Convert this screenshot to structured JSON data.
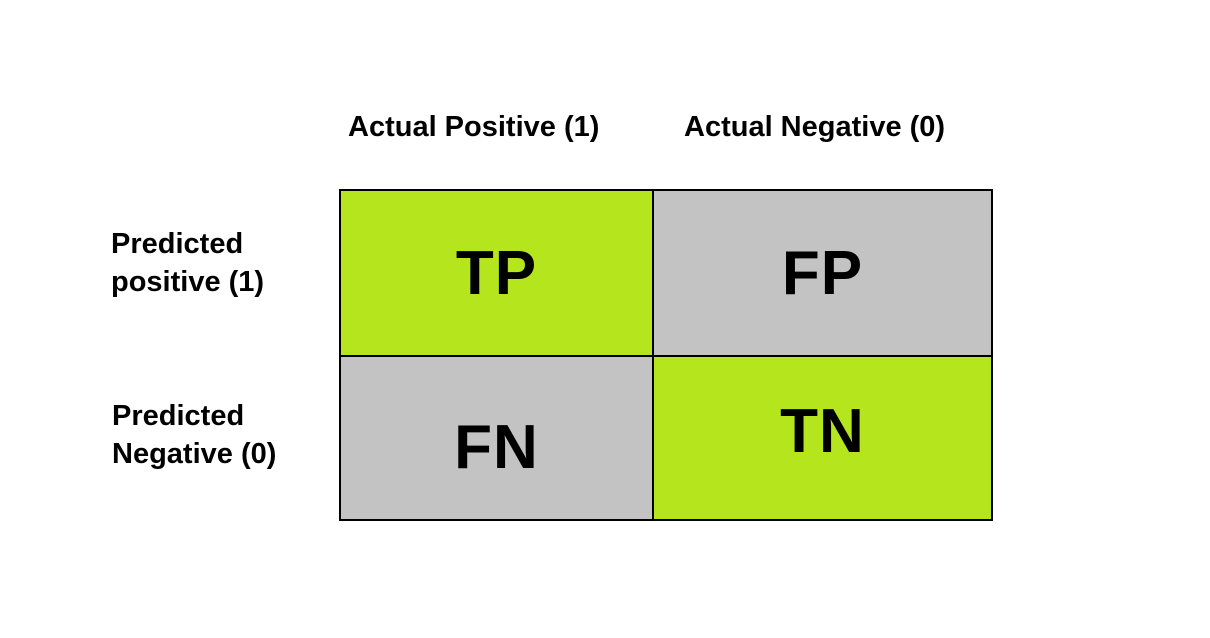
{
  "columns": {
    "actual_positive": "Actual Positive (1)",
    "actual_negative": "Actual Negative (0)"
  },
  "rows": {
    "predicted_positive": [
      "Predicted",
      "positive (1)"
    ],
    "predicted_negative": [
      "Predicted",
      "Negative (0)"
    ]
  },
  "cells": {
    "tp": "TP",
    "fp": "FP",
    "fn": "FN",
    "tn": "TN"
  },
  "colors": {
    "correct": "#b5e61d",
    "incorrect": "#c3c3c3",
    "border": "#000000"
  }
}
